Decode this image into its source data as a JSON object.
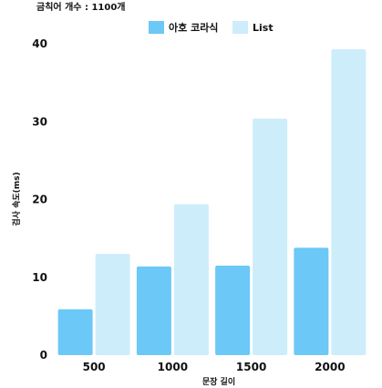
{
  "chart_data": {
    "type": "bar",
    "subtitle": "금칙어 개수 : 1100개",
    "xlabel": "문장 길이",
    "ylabel": "검사 속도(ms)",
    "categories": [
      "500",
      "1000",
      "1500",
      "2000"
    ],
    "series": [
      {
        "name": "아호 코라식",
        "color": "#6BC8F7",
        "values": [
          5.9,
          11.4,
          11.5,
          13.8
        ]
      },
      {
        "name": "List",
        "color": "#CDEDFB",
        "values": [
          13.0,
          19.4,
          30.4,
          39.3
        ]
      }
    ],
    "ylim": [
      0,
      40
    ],
    "yticks": [
      0,
      10,
      20,
      30,
      40
    ],
    "grid": false,
    "legend_position": "top-center"
  }
}
